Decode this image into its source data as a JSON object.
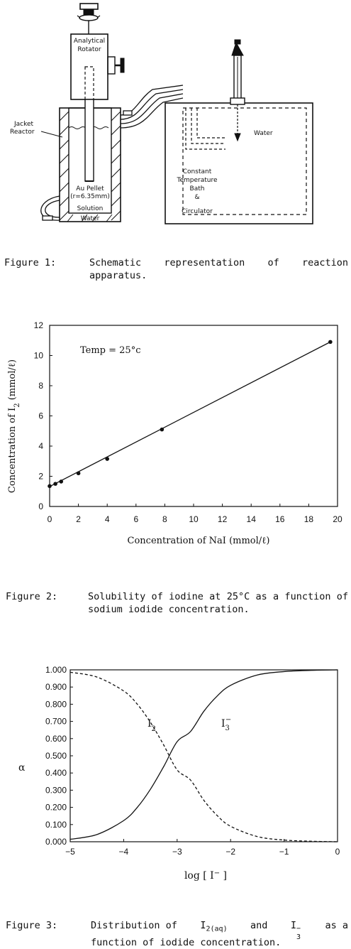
{
  "figure1": {
    "rotator_label_1": "Analytical",
    "rotator_label_2": "Rotator",
    "jacket_label_1": "Jacket",
    "jacket_label_2": "Reactor",
    "pellet_label_1": "Au Pellet",
    "pellet_label_2": "(r=6.35mm)",
    "solution_label": "Solution",
    "water_bottom_label": "Water",
    "water_bath_label": "Water",
    "bath_label_1": "Constant",
    "bath_label_2": "Temperature",
    "bath_label_3": "Bath",
    "bath_label_4": "&",
    "bath_label_5": "Circulator",
    "caption_label": "Figure 1:",
    "caption_text": "Schematic representation of reaction apparatus."
  },
  "figure2": {
    "caption_label": "Figure 2:",
    "caption_text": "Solubility of iodine at 25°C as a function of sodium iodide concentration."
  },
  "figure3": {
    "caption_label": "Figure 3:",
    "caption_text_1": "Distribution of",
    "caption_text_2": "and",
    "caption_text_3": "as a",
    "caption_text_4": "function of iodide concentration.",
    "caption_species_1": "I",
    "caption_species_1_sub": "2(aq)",
    "caption_species_2": "I",
    "caption_species_2_sup": "−",
    "caption_species_2_sub": "3"
  },
  "chart_data": [
    {
      "type": "scatter",
      "title": "",
      "xlabel": "Concentration of NaI (mmol/ℓ)",
      "ylabel": "Concentration of I",
      "ylabel_sub": "2",
      "ylabel_unit": " (mmol/ℓ)",
      "annotation": "Temp = 25°c",
      "xlim": [
        0,
        20
      ],
      "ylim": [
        0,
        12
      ],
      "xticks": [
        0,
        2,
        4,
        6,
        8,
        10,
        12,
        14,
        16,
        18,
        20
      ],
      "yticks": [
        0,
        2,
        4,
        6,
        8,
        10,
        12
      ],
      "grid": false,
      "series": [
        {
          "x": [
            0,
            0.4,
            0.8,
            2.0,
            4.0,
            7.8,
            19.5
          ],
          "y": [
            1.35,
            1.5,
            1.65,
            2.2,
            3.15,
            5.1,
            10.9
          ]
        }
      ],
      "fit_line": {
        "x": [
          0,
          19.5
        ],
        "y": [
          1.32,
          10.9
        ]
      }
    },
    {
      "type": "line",
      "title": "",
      "xlabel": "log [ I− ]",
      "ylabel": "α",
      "xlim": [
        -5,
        0
      ],
      "ylim": [
        0,
        1
      ],
      "xticks": [
        "-5",
        "-4",
        "-3",
        "-2",
        "-1",
        "0"
      ],
      "yticks": [
        "0.000",
        "0.100",
        "0.200",
        "0.300",
        "0.400",
        "0.500",
        "0.600",
        "0.700",
        "0.800",
        "0.900",
        "1.000"
      ],
      "grid": false,
      "curve_labels": [
        {
          "text": "I",
          "sub": "2"
        },
        {
          "text": "I",
          "sub": "3",
          "sup": "−"
        }
      ],
      "series": [
        {
          "style": "dashed",
          "x": [
            -5,
            -4.5,
            -4,
            -3.75,
            -3.5,
            -3.25,
            -3,
            -2.85,
            -2.75,
            -2.5,
            -2.25,
            -2,
            -1.5,
            -1,
            -0.5,
            0
          ],
          "y": [
            0.986,
            0.958,
            0.877,
            0.802,
            0.695,
            0.562,
            0.418,
            0.5,
            0.359,
            0.241,
            0.152,
            0.09,
            0.03,
            0.01,
            0.003,
            0.0
          ]
        },
        {
          "style": "solid",
          "x": [
            -5,
            -4.5,
            -4,
            -3.75,
            -3.5,
            -3.25,
            -3,
            -2.85,
            -2.75,
            -2.5,
            -2.25,
            -2,
            -1.5,
            -1,
            -0.5,
            0
          ],
          "y": [
            0.014,
            0.042,
            0.123,
            0.198,
            0.305,
            0.438,
            0.582,
            0.5,
            0.641,
            0.759,
            0.848,
            0.91,
            0.97,
            0.99,
            0.997,
            1.0
          ]
        }
      ]
    }
  ]
}
